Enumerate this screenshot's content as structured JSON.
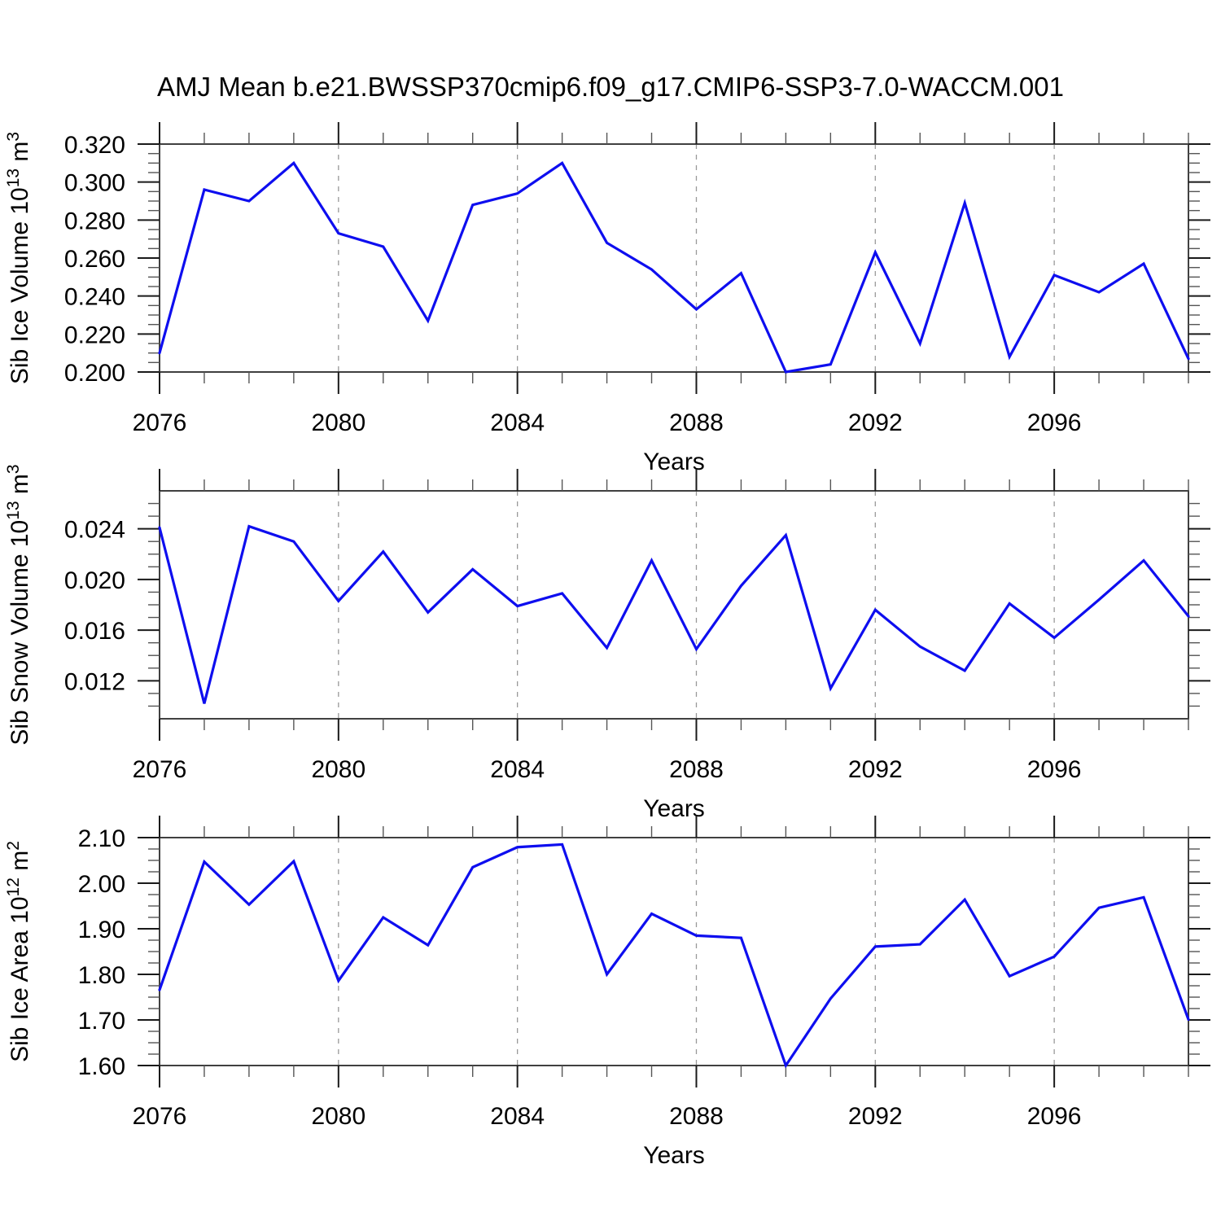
{
  "title": "AMJ Mean b.e21.BWSSP370cmip6.f09_g17.CMIP6-SSP3-7.0-WACCM.001",
  "colors": {
    "line": "#0e0eef",
    "grid": "#999999",
    "frame": "#404040",
    "tick_major": "#1a1a1a",
    "tick_minor": "#555555",
    "text": "#000000"
  },
  "x_axis": {
    "range": [
      2076,
      2099
    ],
    "major_ticks": [
      2076,
      2080,
      2084,
      2088,
      2092,
      2096
    ],
    "grid_years": [
      2080,
      2084,
      2088,
      2092,
      2096
    ],
    "minor_step": 1
  },
  "chart_data": [
    {
      "type": "line",
      "id": "ice-volume",
      "xlabel": "Years",
      "ylabel_plain": "Sib Ice Volume 10^13 m^3",
      "ylabel_parts": [
        {
          "t": "Sib Ice Volume 10"
        },
        {
          "t": "13",
          "sup": true
        },
        {
          "t": " m"
        },
        {
          "t": "3",
          "sup": true
        }
      ],
      "x": [
        2076,
        2077,
        2078,
        2079,
        2080,
        2081,
        2082,
        2083,
        2084,
        2085,
        2086,
        2087,
        2088,
        2089,
        2090,
        2091,
        2092,
        2093,
        2094,
        2095,
        2096,
        2097,
        2098,
        2099
      ],
      "values": [
        0.21,
        0.296,
        0.29,
        0.31,
        0.273,
        0.266,
        0.227,
        0.288,
        0.294,
        0.31,
        0.268,
        0.254,
        0.233,
        0.252,
        0.2,
        0.204,
        0.263,
        0.215,
        0.289,
        0.208,
        0.251,
        0.242,
        0.257,
        0.207
      ],
      "ylim": [
        0.2,
        0.32
      ],
      "yticks": [
        {
          "v": 0.2,
          "label": "0.200"
        },
        {
          "v": 0.22,
          "label": "0.220"
        },
        {
          "v": 0.24,
          "label": "0.240"
        },
        {
          "v": 0.26,
          "label": "0.260"
        },
        {
          "v": 0.28,
          "label": "0.280"
        },
        {
          "v": 0.3,
          "label": "0.300"
        },
        {
          "v": 0.32,
          "label": "0.320"
        }
      ],
      "yminor_step": 0.005
    },
    {
      "type": "line",
      "id": "snow-volume",
      "xlabel": "Years",
      "ylabel_plain": "Sib Snow Volume 10^13 m^3",
      "ylabel_parts": [
        {
          "t": "Sib Snow Volume 10"
        },
        {
          "t": "13",
          "sup": true
        },
        {
          "t": " m"
        },
        {
          "t": "3",
          "sup": true
        }
      ],
      "x": [
        2076,
        2077,
        2078,
        2079,
        2080,
        2081,
        2082,
        2083,
        2084,
        2085,
        2086,
        2087,
        2088,
        2089,
        2090,
        2091,
        2092,
        2093,
        2094,
        2095,
        2096,
        2097,
        2098,
        2099
      ],
      "values": [
        0.0241,
        0.0102,
        0.0242,
        0.023,
        0.0183,
        0.0222,
        0.0174,
        0.0208,
        0.0179,
        0.0189,
        0.0146,
        0.0215,
        0.0145,
        0.0195,
        0.0235,
        0.0114,
        0.0176,
        0.0147,
        0.0128,
        0.0181,
        0.0154,
        0.0184,
        0.0215,
        0.0171
      ],
      "ylim": [
        0.009,
        0.027
      ],
      "yticks": [
        {
          "v": 0.012,
          "label": "0.012"
        },
        {
          "v": 0.016,
          "label": "0.016"
        },
        {
          "v": 0.02,
          "label": "0.020"
        },
        {
          "v": 0.024,
          "label": "0.024"
        }
      ],
      "yminor_step": 0.001
    },
    {
      "type": "line",
      "id": "ice-area",
      "xlabel": "Years",
      "ylabel_plain": "Sib Ice Area 10^12 m^2",
      "ylabel_parts": [
        {
          "t": "Sib Ice Area 10"
        },
        {
          "t": "12",
          "sup": true
        },
        {
          "t": " m"
        },
        {
          "t": "2",
          "sup": true
        }
      ],
      "x": [
        2076,
        2077,
        2078,
        2079,
        2080,
        2081,
        2082,
        2083,
        2084,
        2085,
        2086,
        2087,
        2088,
        2089,
        2090,
        2091,
        2092,
        2093,
        2094,
        2095,
        2096,
        2097,
        2098,
        2099
      ],
      "values": [
        1.766,
        2.047,
        1.953,
        2.048,
        1.786,
        1.925,
        1.864,
        2.035,
        2.079,
        2.085,
        1.8,
        1.933,
        1.885,
        1.88,
        1.6,
        1.747,
        1.861,
        1.866,
        1.964,
        1.796,
        1.839,
        1.946,
        1.969,
        1.701
      ],
      "ylim": [
        1.6,
        2.1
      ],
      "yticks": [
        {
          "v": 1.6,
          "label": "1.60"
        },
        {
          "v": 1.7,
          "label": "1.70"
        },
        {
          "v": 1.8,
          "label": "1.80"
        },
        {
          "v": 1.9,
          "label": "1.90"
        },
        {
          "v": 2.0,
          "label": "2.00"
        },
        {
          "v": 2.1,
          "label": "2.10"
        }
      ],
      "yminor_step": 0.025
    }
  ]
}
